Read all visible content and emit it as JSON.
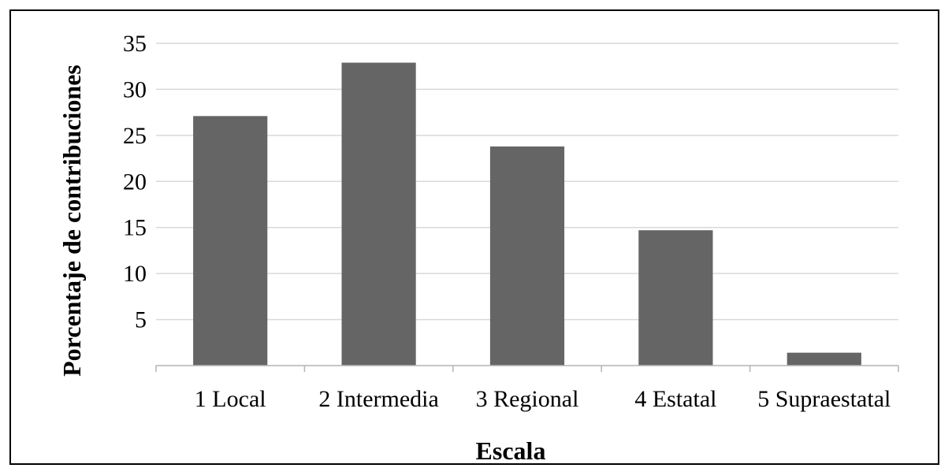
{
  "chart_data": {
    "type": "bar",
    "categories": [
      "1 Local",
      "2 Intermedia",
      "3 Regional",
      "4 Estatal",
      "5 Supraestatal"
    ],
    "values": [
      27.1,
      32.9,
      23.8,
      14.7,
      1.4
    ],
    "title": "",
    "xlabel": "Escala",
    "ylabel": "Porcentaje de contribuciones",
    "ylim": [
      0,
      35
    ],
    "yticks": [
      5,
      10,
      15,
      20,
      25,
      30,
      35
    ],
    "grid": true,
    "legend": "none",
    "colors": {
      "bar": "#656565",
      "grid": "#d9d9d9",
      "axis": "#b3b3b3",
      "text": "#000000"
    }
  }
}
